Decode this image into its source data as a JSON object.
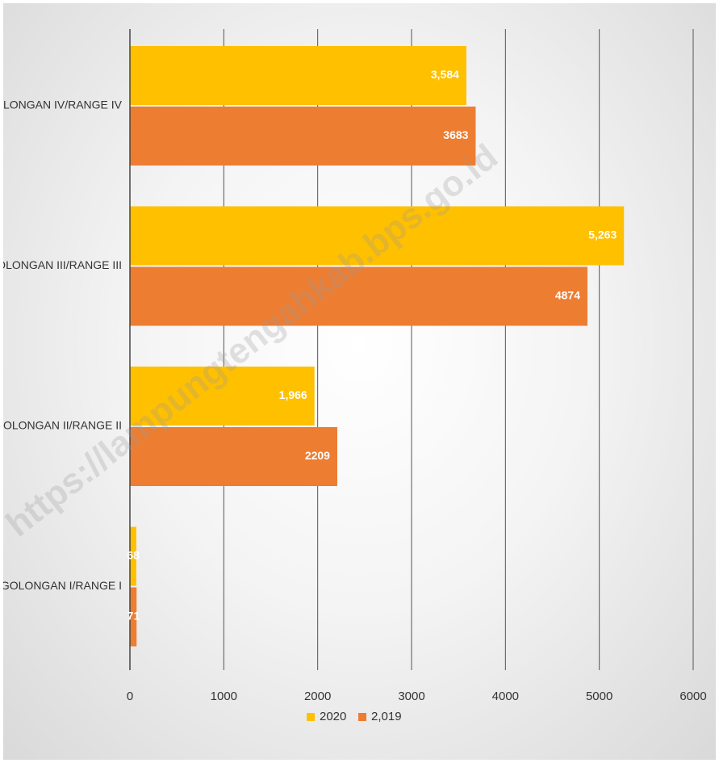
{
  "chart_data": {
    "type": "bar",
    "orientation": "horizontal",
    "categories": [
      "GOLONGAN IV/RANGE IV",
      "GOLONGAN III/RANGE III",
      "GOLONGAN II/RANGE II",
      "GOLONGAN I/RANGE I"
    ],
    "series": [
      {
        "name": "2020",
        "color": "#FFC000",
        "values": [
          3584,
          5263,
          1966,
          68
        ],
        "labels": [
          "3,584",
          "5,263",
          "1,966",
          "68"
        ]
      },
      {
        "name": "2,019",
        "color": "#ED7D31",
        "values": [
          3683,
          4874,
          2209,
          71
        ],
        "labels": [
          "3683",
          "4874",
          "2209",
          "71"
        ]
      }
    ],
    "xlim": [
      0,
      6000
    ],
    "x_ticks": [
      0,
      1000,
      2000,
      3000,
      4000,
      5000,
      6000
    ],
    "x_tick_labels": [
      "0",
      "1000",
      "2000",
      "3000",
      "4000",
      "5000",
      "6000"
    ],
    "grid": true,
    "legend_position": "bottom"
  },
  "watermark": {
    "text": "https://lampungtengahkab.bps.go.id",
    "color": "#9a9a9a"
  }
}
